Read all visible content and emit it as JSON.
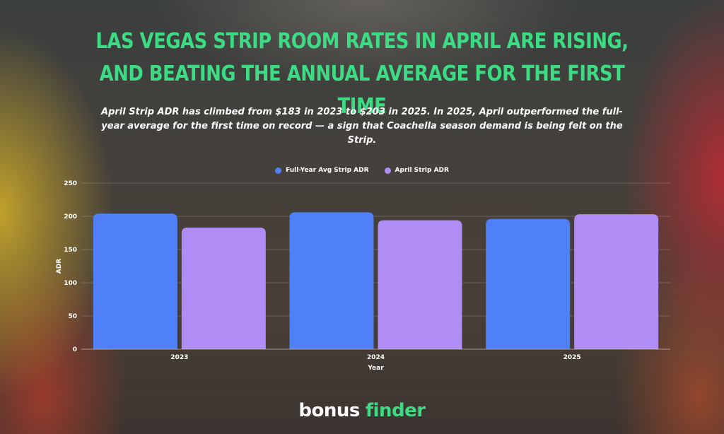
{
  "title": "Las Vegas Strip room rates in April are rising, and beating the annual average for the first time",
  "subtitle": "April Strip ADR has climbed from $183 in 2023 to $203 in 2025. In 2025, April outperformed the full-year average for the first time on record — a sign that Coachella season demand is being felt on the Strip.",
  "logo": {
    "part1": "bonus",
    "part2": "finder"
  },
  "colors": {
    "title": "#3ddc84",
    "series1": "#4f80f7",
    "series2": "#b08df4"
  },
  "chart_data": {
    "type": "bar",
    "categories": [
      "2023",
      "2024",
      "2025"
    ],
    "series": [
      {
        "name": "Full-Year Avg Strip ADR",
        "values": [
          204,
          206,
          196
        ]
      },
      {
        "name": "April Strip ADR",
        "values": [
          183,
          194,
          203
        ]
      }
    ],
    "xlabel": "Year",
    "ylabel": "ADR",
    "ylim": [
      0,
      250
    ],
    "yticks": [
      0,
      50,
      100,
      150,
      200,
      250
    ],
    "grid": true,
    "legend": "top-center"
  }
}
